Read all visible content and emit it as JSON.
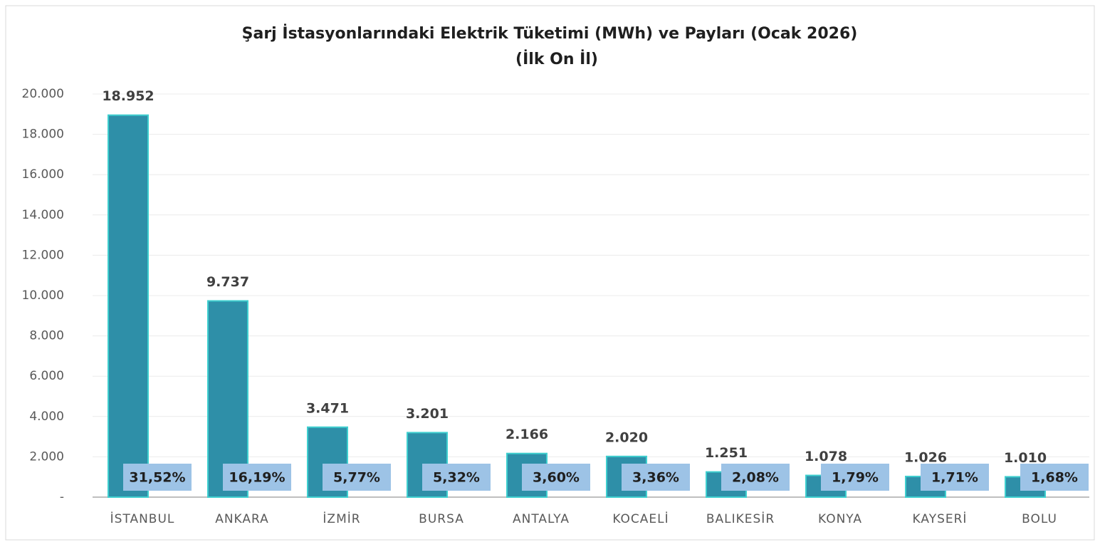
{
  "chart_data": {
    "type": "bar",
    "title": "Şarj İstasyonlarındaki Elektrik Tüketimi (MWh) ve Payları (Ocak 2026)",
    "subtitle": "(İlk On İl)",
    "categories": [
      "İSTANBUL",
      "ANKARA",
      "İZMİR",
      "BURSA",
      "ANTALYA",
      "KOCAELİ",
      "BALIKESİR",
      "KONYA",
      "KAYSERİ",
      "BOLU"
    ],
    "values": [
      18952,
      9737,
      3471,
      3201,
      2166,
      2020,
      1251,
      1078,
      1026,
      1010
    ],
    "value_labels": [
      "18.952",
      "9.737",
      "3.471",
      "3.201",
      "2.166",
      "2.020",
      "1.251",
      "1.078",
      "1.026",
      "1.010"
    ],
    "shares": [
      31.52,
      16.19,
      5.77,
      5.32,
      3.6,
      3.36,
      2.08,
      1.79,
      1.71,
      1.68
    ],
    "share_labels": [
      "31,52%",
      "16,19%",
      "5,77%",
      "5,32%",
      "3,60%",
      "3,36%",
      "2,08%",
      "1,79%",
      "1,71%",
      "1,68%"
    ],
    "color": "#2e8fa8",
    "ylim": [
      0,
      20000
    ],
    "yticks": [
      {
        "value": 0,
        "label": "-"
      },
      {
        "value": 2000,
        "label": "2.000"
      },
      {
        "value": 4000,
        "label": "4.000"
      },
      {
        "value": 6000,
        "label": "6.000"
      },
      {
        "value": 8000,
        "label": "8.000"
      },
      {
        "value": 10000,
        "label": "10.000"
      },
      {
        "value": 12000,
        "label": "12.000"
      },
      {
        "value": 14000,
        "label": "14.000"
      },
      {
        "value": 16000,
        "label": "16.000"
      },
      {
        "value": 18000,
        "label": "18.000"
      },
      {
        "value": 20000,
        "label": "20.000"
      }
    ],
    "grid": true
  }
}
